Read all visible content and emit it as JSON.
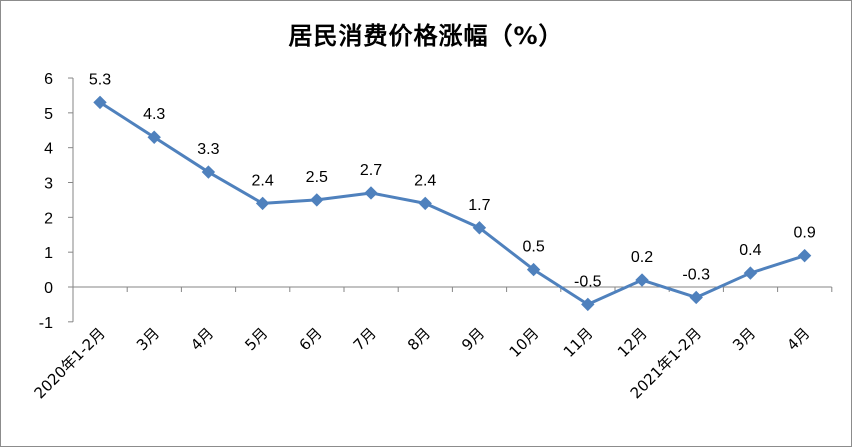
{
  "chart_data": {
    "type": "line",
    "title": "居民消费价格涨幅（%）",
    "xlabel": "",
    "ylabel": "",
    "categories": [
      "2020年1-2月",
      "3月",
      "4月",
      "5月",
      "6月",
      "7月",
      "8月",
      "9月",
      "10月",
      "11月",
      "12月",
      "2021年1-2月",
      "3月",
      "4月"
    ],
    "series": [
      {
        "values": [
          5.3,
          4.3,
          3.3,
          2.4,
          2.5,
          2.7,
          2.4,
          1.7,
          0.5,
          -0.5,
          0.2,
          -0.3,
          0.4,
          0.9
        ],
        "labels": [
          "5.3",
          "4.3",
          "3.3",
          "2.4",
          "2.5",
          "2.7",
          "2.4",
          "1.7",
          "0.5",
          "-0.5",
          "0.2",
          "-0.3",
          "0.4",
          "0.9"
        ]
      }
    ],
    "ylim": [
      -1,
      6
    ],
    "yticks": [
      "-1",
      "0",
      "1",
      "2",
      "3",
      "4",
      "5",
      "6"
    ],
    "grid": false,
    "legend": "none",
    "line_color": "#4f81bd",
    "marker": "diamond"
  }
}
